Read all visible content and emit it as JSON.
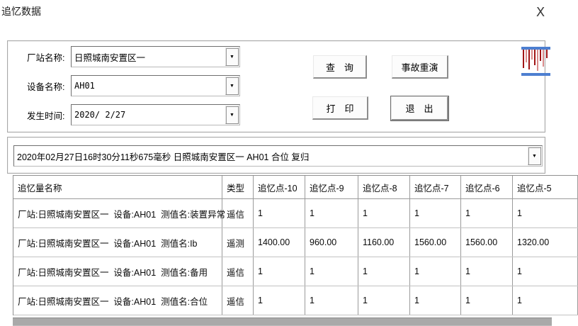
{
  "window": {
    "title": "追忆数据",
    "close_glyph": "X"
  },
  "form": {
    "fields": [
      {
        "label": "厂站名称:",
        "value": "日照城南安置区一"
      },
      {
        "label": "设备名称:",
        "value": "AH01"
      },
      {
        "label": "发生时间:",
        "value": "2020/ 2/27"
      }
    ],
    "dropdown_glyph": "▼",
    "buttons": {
      "query": "查　询",
      "replay": "事故重演",
      "print": "打　印",
      "exit": "退　出"
    }
  },
  "event_select": {
    "value": "2020年02月27日16时30分11秒675毫秒  日照城南安置区一 AH01 合位 复归"
  },
  "table": {
    "columns": [
      "追忆量名称",
      "类型",
      "追忆点-10",
      "追忆点-9",
      "追忆点-8",
      "追忆点-7",
      "追忆点-6",
      "追忆点-5"
    ],
    "rows": [
      {
        "name": "厂站:日照城南安置区一  设备:AH01  测值名:装置异常",
        "type": "遥信",
        "values": [
          "1",
          "1",
          "1",
          "1",
          "1",
          "1"
        ]
      },
      {
        "name": "厂站:日照城南安置区一  设备:AH01  测值名:Ib",
        "type": "遥测",
        "values": [
          "1400.00",
          "960.00",
          "1160.00",
          "1560.00",
          "1560.00",
          "1320.00"
        ]
      },
      {
        "name": "厂站:日照城南安置区一  设备:AH01  测值名:备用",
        "type": "遥信",
        "values": [
          "1",
          "1",
          "1",
          "1",
          "1",
          "1"
        ]
      },
      {
        "name": "厂站:日照城南安置区一  设备:AH01  测值名:合位",
        "type": "遥信",
        "values": [
          "1",
          "1",
          "1",
          "1",
          "1",
          "1"
        ]
      }
    ]
  },
  "colors": {
    "icon_blue": "#4d7fd0",
    "icon_red_dark": "#a01515",
    "icon_red_light": "#d98c8c",
    "scrollbar_gray": "#a9a9a9",
    "grid_line": "#9b9b9b"
  }
}
